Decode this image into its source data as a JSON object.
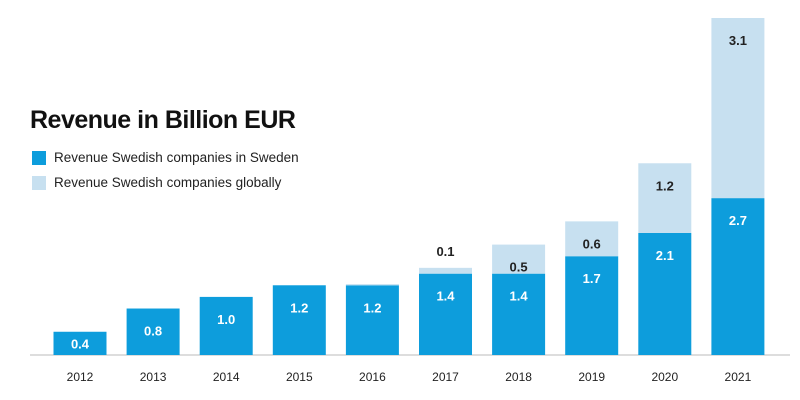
{
  "chart_data": {
    "type": "bar",
    "stacked": true,
    "title": "Revenue in Billion EUR",
    "categories": [
      "2012",
      "2013",
      "2014",
      "2015",
      "2016",
      "2017",
      "2018",
      "2019",
      "2020",
      "2021"
    ],
    "series": [
      {
        "name": "Revenue Swedish companies in Sweden",
        "color": "#0d9ddc",
        "values": [
          0.4,
          0.8,
          1.0,
          1.2,
          1.2,
          1.4,
          1.4,
          1.7,
          2.1,
          2.7
        ],
        "labels": [
          "0.4",
          "0.8",
          "1.0",
          "1.2",
          "1.2",
          "1.4",
          "1.4",
          "1.7",
          "2.1",
          "2.7"
        ]
      },
      {
        "name": "Revenue Swedish companies globally",
        "color": "#c7e0f0",
        "values": [
          0,
          0,
          0,
          0,
          0.02,
          0.1,
          0.5,
          0.6,
          1.2,
          3.1
        ],
        "labels": [
          "",
          "",
          "",
          "",
          "",
          "0.1",
          "0.5",
          "0.6",
          "1.2",
          "3.1"
        ]
      }
    ],
    "ylim": [
      0,
      5.8
    ],
    "grid": false,
    "legend_position": "top-left"
  }
}
